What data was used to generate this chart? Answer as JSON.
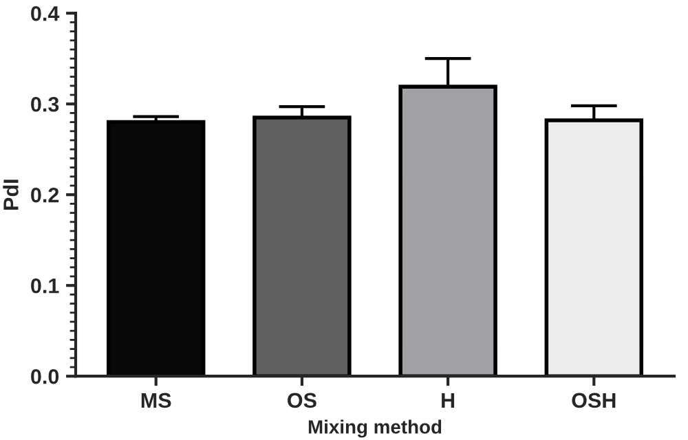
{
  "chart_data": {
    "type": "bar",
    "xlabel": "Mixing method",
    "ylabel": "PdI",
    "categories": [
      "MS",
      "OS",
      "H",
      "OSH"
    ],
    "values": [
      0.28,
      0.285,
      0.319,
      0.282
    ],
    "errors": [
      [
        0.28,
        0.286
      ],
      [
        0.285,
        0.297
      ],
      [
        0.319,
        0.35
      ],
      [
        0.282,
        0.298
      ]
    ],
    "colors": [
      "#080808",
      "#606060",
      "#a2a2a6",
      "#ececec"
    ],
    "ylim": [
      0,
      0.4
    ],
    "yticks": [
      {
        "value": 0,
        "label": "0.0"
      },
      0.1,
      0.2,
      0.3,
      0.4
    ],
    "grid": false,
    "legend": false
  }
}
